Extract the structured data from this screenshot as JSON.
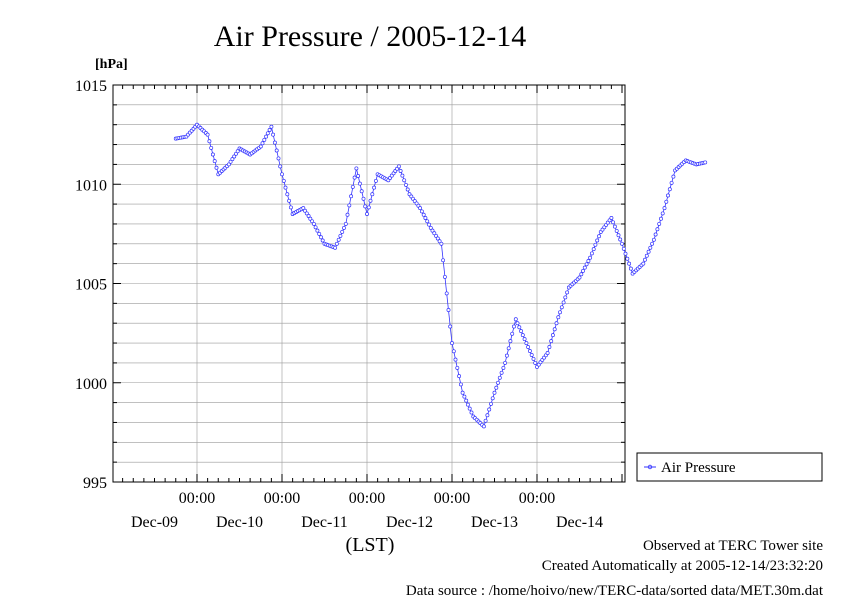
{
  "chart_data": {
    "type": "line",
    "title": "Air Pressure / 2005-12-14",
    "ylabel": "[hPa]",
    "xlabel": "(LST)",
    "ylim": [
      995,
      1015
    ],
    "y_ticks": [
      "995",
      "1000",
      "1005",
      "1010",
      "1015"
    ],
    "x_time_labels": [
      "00:00",
      "00:00",
      "00:00",
      "00:00",
      "00:00"
    ],
    "x_day_labels": [
      "Dec-09",
      "Dec-10",
      "Dec-11",
      "Dec-12",
      "Dec-13",
      "Dec-14"
    ],
    "grid": true,
    "legend_position": "right",
    "line_color": "#3333ff",
    "series": [
      {
        "name": "Air Pressure",
        "x": [
          "2005-12-08 18:00",
          "2005-12-08 21:00",
          "2005-12-09 00:00",
          "2005-12-09 03:00",
          "2005-12-09 06:00",
          "2005-12-09 09:00",
          "2005-12-09 12:00",
          "2005-12-09 15:00",
          "2005-12-09 18:00",
          "2005-12-09 21:00",
          "2005-12-10 00:00",
          "2005-12-10 03:00",
          "2005-12-10 06:00",
          "2005-12-10 09:00",
          "2005-12-10 12:00",
          "2005-12-10 15:00",
          "2005-12-10 18:00",
          "2005-12-10 21:00",
          "2005-12-11 00:00",
          "2005-12-11 03:00",
          "2005-12-11 06:00",
          "2005-12-11 09:00",
          "2005-12-11 12:00",
          "2005-12-11 15:00",
          "2005-12-11 18:00",
          "2005-12-11 21:00",
          "2005-12-12 00:00",
          "2005-12-12 03:00",
          "2005-12-12 06:00",
          "2005-12-12 09:00",
          "2005-12-12 12:00",
          "2005-12-12 15:00",
          "2005-12-12 18:00",
          "2005-12-12 21:00",
          "2005-12-13 00:00",
          "2005-12-13 03:00",
          "2005-12-13 06:00",
          "2005-12-13 09:00",
          "2005-12-13 12:00",
          "2005-12-13 15:00",
          "2005-12-13 18:00",
          "2005-12-13 21:00",
          "2005-12-14 00:00",
          "2005-12-14 03:00",
          "2005-12-14 06:00",
          "2005-12-14 09:00",
          "2005-12-14 12:00",
          "2005-12-14 15:00",
          "2005-12-14 18:00",
          "2005-12-14 21:00",
          "2005-12-14 23:30"
        ],
        "values": [
          1012.3,
          1012.4,
          1013.0,
          1012.5,
          1010.5,
          1011.0,
          1011.8,
          1011.5,
          1011.9,
          1012.9,
          1010.5,
          1008.5,
          1008.8,
          1008.0,
          1007.0,
          1006.8,
          1008.0,
          1010.8,
          1008.5,
          1010.5,
          1010.2,
          1010.9,
          1009.5,
          1008.8,
          1007.8,
          1007.0,
          1002.0,
          999.5,
          998.3,
          997.8,
          999.5,
          1001.0,
          1003.2,
          1002.0,
          1000.8,
          1001.5,
          1003.3,
          1004.8,
          1005.3,
          1006.3,
          1007.6,
          1008.3,
          1007.0,
          1005.5,
          1006.0,
          1007.2,
          1008.8,
          1010.7,
          1011.2,
          1011.0,
          1011.1
        ]
      }
    ]
  },
  "footer": {
    "observed": "Observed at TERC Tower site",
    "created": "Created Automatically at 2005-12-14/23:32:20",
    "source": "Data source : /home/hoivo/new/TERC-data/sorted  data/MET.30m.dat"
  }
}
